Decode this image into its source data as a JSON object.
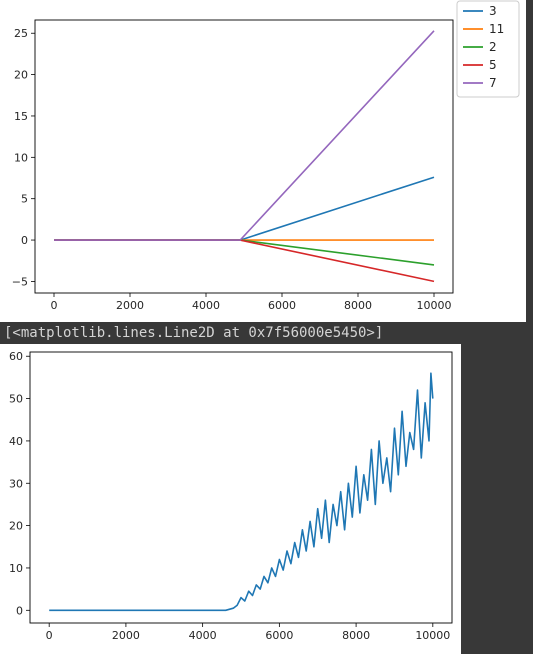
{
  "output": {
    "repr": "[<matplotlib.lines.Line2D at 0x7f56000e5450>]"
  },
  "colors": {
    "c3": "#1f77b4",
    "c11": "#ff7f0e",
    "c2": "#2ca02c",
    "c5": "#d62728",
    "c7": "#9467bd"
  },
  "chart_data": [
    {
      "type": "line",
      "xlim": [
        -500,
        10500
      ],
      "ylim": [
        -6.4,
        26.6
      ],
      "xticks": [
        0,
        2000,
        4000,
        6000,
        8000,
        10000
      ],
      "yticks": [
        -5,
        0,
        5,
        10,
        15,
        20,
        25
      ],
      "legend_placement": "outside-top-right",
      "grid": false,
      "series": [
        {
          "name": "3",
          "color": "#1f77b4",
          "x": [
            0,
            4900,
            10000
          ],
          "y": [
            0,
            0,
            7.6
          ]
        },
        {
          "name": "11",
          "color": "#ff7f0e",
          "x": [
            0,
            4900,
            10000
          ],
          "y": [
            0,
            0,
            0
          ]
        },
        {
          "name": "2",
          "color": "#2ca02c",
          "x": [
            0,
            4900,
            10000
          ],
          "y": [
            0,
            0,
            -3.0
          ]
        },
        {
          "name": "5",
          "color": "#d62728",
          "x": [
            0,
            4900,
            10000
          ],
          "y": [
            0,
            0,
            -5.0
          ]
        },
        {
          "name": "7",
          "color": "#9467bd",
          "x": [
            0,
            4900,
            10000
          ],
          "y": [
            0,
            0,
            25.3
          ]
        }
      ]
    },
    {
      "type": "line",
      "xlim": [
        -500,
        10500
      ],
      "ylim": [
        -3,
        61
      ],
      "xticks": [
        0,
        2000,
        4000,
        6000,
        8000,
        10000
      ],
      "yticks": [
        0,
        10,
        20,
        30,
        40,
        50,
        60
      ],
      "grid": false,
      "series": [
        {
          "color": "#1f77b4",
          "x": [
            0,
            4600,
            4800,
            4900,
            5000,
            5100,
            5200,
            5300,
            5400,
            5500,
            5600,
            5700,
            5800,
            5900,
            6000,
            6100,
            6200,
            6300,
            6400,
            6500,
            6600,
            6700,
            6800,
            6900,
            7000,
            7100,
            7200,
            7300,
            7400,
            7500,
            7600,
            7700,
            7800,
            7900,
            8000,
            8100,
            8200,
            8300,
            8400,
            8500,
            8600,
            8700,
            8800,
            8900,
            9000,
            9100,
            9200,
            9300,
            9400,
            9500,
            9600,
            9700,
            9800,
            9900,
            9950,
            10000
          ],
          "y": [
            0,
            0,
            0.5,
            1.2,
            3.0,
            2.2,
            4.5,
            3.5,
            6.0,
            5.0,
            8.0,
            6.5,
            10.0,
            8.0,
            12.0,
            9.5,
            14.0,
            11.0,
            16.0,
            12.5,
            19.0,
            14.0,
            21.0,
            15.0,
            24.0,
            17.0,
            26.0,
            16.0,
            25.0,
            20.0,
            28.0,
            19.0,
            30.0,
            22.0,
            34.0,
            23.0,
            32.0,
            26.0,
            38.0,
            25.0,
            40.0,
            30.0,
            36.0,
            28.0,
            43.0,
            32.0,
            47.0,
            34.0,
            42.0,
            38.0,
            52.0,
            36.0,
            49.0,
            40.0,
            56.0,
            50.0
          ]
        }
      ]
    }
  ]
}
